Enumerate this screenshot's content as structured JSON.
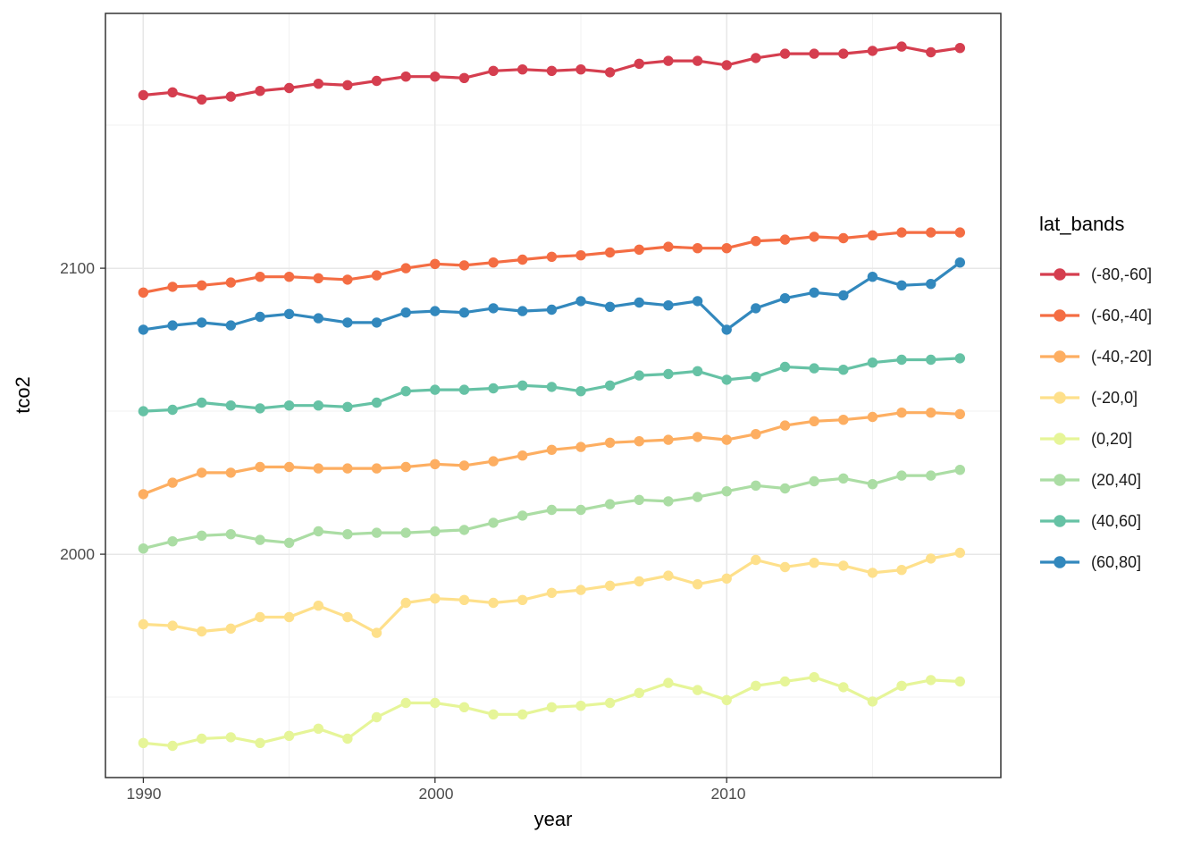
{
  "chart_data": {
    "type": "line",
    "title": "",
    "xlabel": "year",
    "ylabel": "tco2",
    "legend_title": "lat_bands",
    "legend_position": "right",
    "grid": true,
    "background": "#ffffff",
    "panel_border_color": "#333333",
    "grid_major_color": "#e7e7e7",
    "grid_minor_color": "#f2f2f2",
    "tick_label_color": "#4d4d4d",
    "x": [
      1990,
      1991,
      1992,
      1993,
      1994,
      1995,
      1996,
      1997,
      1998,
      1999,
      2000,
      2001,
      2002,
      2003,
      2004,
      2005,
      2006,
      2007,
      2008,
      2009,
      2010,
      2011,
      2012,
      2013,
      2014,
      2015,
      2016,
      2017,
      2018
    ],
    "x_domain": [
      1988.7,
      2019.4
    ],
    "y_domain": [
      1921.9,
      2189.1
    ],
    "x_ticks": [
      {
        "value": 1990,
        "label": "1990"
      },
      {
        "value": 2000,
        "label": "2000"
      },
      {
        "value": 2010,
        "label": "2010"
      }
    ],
    "y_ticks": [
      {
        "value": 2100,
        "label": "2100"
      },
      {
        "value": 2000,
        "label": "2000"
      }
    ],
    "x_minor_ticks": [
      1995,
      2005,
      2015
    ],
    "y_minor_ticks": [
      1950,
      2050,
      2150
    ],
    "series": [
      {
        "name": "(-80,-60]",
        "color": "#d53e4f",
        "values": [
          2160.5,
          2161.5,
          2159,
          2160,
          2162,
          2163,
          2164.5,
          2164,
          2165.5,
          2167,
          2167,
          2166.5,
          2169,
          2169.5,
          2169,
          2169.5,
          2168.5,
          2171.5,
          2172.5,
          2172.5,
          2171,
          2173.5,
          2175,
          2175,
          2175,
          2176,
          2177.5,
          2175.5,
          2177
        ]
      },
      {
        "name": "(-60,-40]",
        "color": "#f46d43",
        "values": [
          2091.5,
          2093.5,
          2094,
          2095,
          2097,
          2097,
          2096.5,
          2096,
          2097.5,
          2100,
          2101.5,
          2101,
          2102,
          2103,
          2104,
          2104.5,
          2105.5,
          2106.5,
          2107.5,
          2107,
          2107,
          2109.5,
          2110,
          2111,
          2110.5,
          2111.5,
          2112.5,
          2112.5,
          2112.5
        ]
      },
      {
        "name": "(-40,-20]",
        "color": "#fdae61",
        "values": [
          2021,
          2025,
          2028.5,
          2028.5,
          2030.5,
          2030.5,
          2030,
          2030,
          2030,
          2030.5,
          2031.5,
          2031,
          2032.5,
          2034.5,
          2036.5,
          2037.5,
          2039,
          2039.5,
          2040,
          2041,
          2040,
          2042,
          2045,
          2046.5,
          2047,
          2048,
          2049.5,
          2049.5,
          2049
        ]
      },
      {
        "name": "(-20,0]",
        "color": "#fee08b",
        "values": [
          1975.5,
          1975,
          1973,
          1974,
          1978,
          1978,
          1982,
          1978,
          1972.5,
          1983,
          1984.5,
          1984,
          1983,
          1984,
          1986.5,
          1987.5,
          1989,
          1990.5,
          1992.5,
          1989.5,
          1991.5,
          1998,
          1995.5,
          1997,
          1996,
          1993.5,
          1994.5,
          1998.5,
          2000.5
        ]
      },
      {
        "name": "(0,20]",
        "color": "#e6f598",
        "values": [
          1934,
          1933,
          1935.5,
          1936,
          1934,
          1936.5,
          1939,
          1935.5,
          1943,
          1948,
          1948,
          1946.5,
          1944,
          1944,
          1946.5,
          1947,
          1948,
          1951.5,
          1955,
          1952.5,
          1949,
          1954,
          1955.5,
          1957,
          1953.5,
          1948.5,
          1954,
          1956,
          1955.5
        ]
      },
      {
        "name": "(20,40]",
        "color": "#abdda4",
        "values": [
          2002,
          2004.5,
          2006.5,
          2007,
          2005,
          2004,
          2008,
          2007,
          2007.5,
          2007.5,
          2008,
          2008.5,
          2011,
          2013.5,
          2015.5,
          2015.5,
          2017.5,
          2019,
          2018.5,
          2020,
          2022,
          2024,
          2023,
          2025.5,
          2026.5,
          2024.5,
          2027.5,
          2027.5,
          2029.5
        ]
      },
      {
        "name": "(40,60]",
        "color": "#66c2a5",
        "values": [
          2050,
          2050.5,
          2053,
          2052,
          2051,
          2052,
          2052,
          2051.5,
          2053,
          2057,
          2057.5,
          2057.5,
          2058,
          2059,
          2058.5,
          2057,
          2059,
          2062.5,
          2063,
          2064,
          2061,
          2062,
          2065.5,
          2065,
          2064.5,
          2067,
          2068,
          2068,
          2068.5
        ]
      },
      {
        "name": "(60,80]",
        "color": "#3288bd",
        "values": [
          2078.5,
          2080,
          2081,
          2080,
          2083,
          2084,
          2082.5,
          2081,
          2081,
          2084.5,
          2085,
          2084.5,
          2086,
          2085,
          2085.5,
          2088.5,
          2086.5,
          2088,
          2087,
          2088.5,
          2078.5,
          2086,
          2089.5,
          2091.5,
          2090.5,
          2097,
          2094,
          2094.5,
          2102
        ]
      }
    ]
  }
}
